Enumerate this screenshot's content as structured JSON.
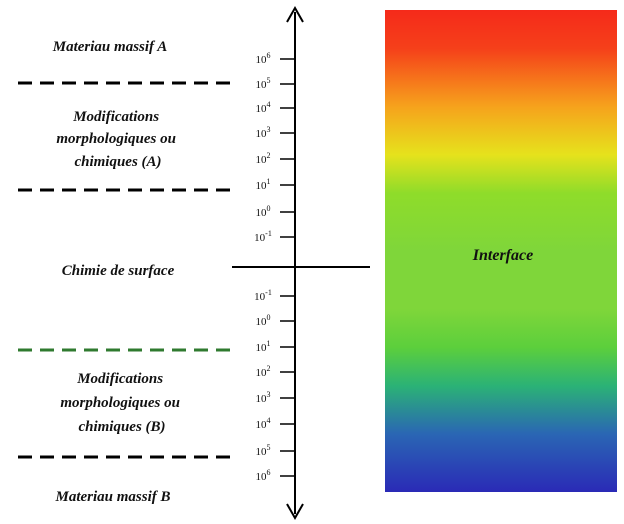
{
  "regions": {
    "massif_a": "Materiau massif A",
    "modif_a": [
      "Modifications",
      "morphologiques ou",
      "chimiques (A)"
    ],
    "surface": "Chimie de surface",
    "modif_b": [
      "Modifications",
      "morphologiques ou",
      "chimiques (B)"
    ],
    "massif_b": "Materiau massif B"
  },
  "scale_upper": [
    {
      "base": "10",
      "exp": "6"
    },
    {
      "base": "10",
      "exp": "5"
    },
    {
      "base": "10",
      "exp": "4"
    },
    {
      "base": "10",
      "exp": "3"
    },
    {
      "base": "10",
      "exp": "2"
    },
    {
      "base": "10",
      "exp": "1"
    },
    {
      "base": "10",
      "exp": "0"
    },
    {
      "base": "10",
      "exp": "-1"
    }
  ],
  "scale_lower": [
    {
      "base": "10",
      "exp": "-1"
    },
    {
      "base": "10",
      "exp": "0"
    },
    {
      "base": "10",
      "exp": "1"
    },
    {
      "base": "10",
      "exp": "2"
    },
    {
      "base": "10",
      "exp": "3"
    },
    {
      "base": "10",
      "exp": "4"
    },
    {
      "base": "10",
      "exp": "5"
    },
    {
      "base": "10",
      "exp": "6"
    }
  ],
  "interface_label": "Interface",
  "colors": {
    "gradient": [
      "#f52a1a",
      "#f5401a",
      "#f6a21c",
      "#e6e21c",
      "#8fdc2a",
      "#7fd63a",
      "#7fd63a",
      "#5ccf3c",
      "#2bb276",
      "#2a66b4",
      "#2a2ab6"
    ],
    "divider_black": "#000000",
    "divider_green": "#2f7a2f"
  }
}
